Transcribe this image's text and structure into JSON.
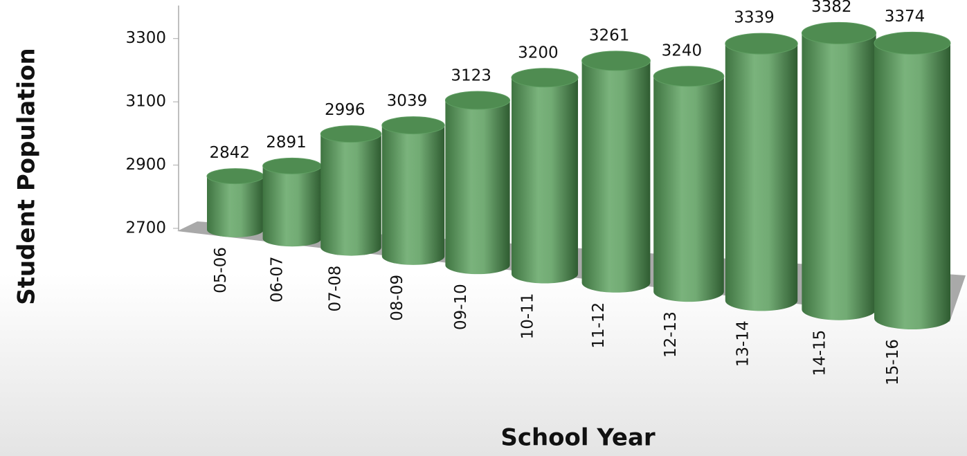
{
  "chart_data": {
    "type": "bar",
    "style": "3d-cylinder",
    "x_label": "School Year",
    "y_label": "Student Population",
    "categories": [
      "05-06",
      "06-07",
      "07-08",
      "08-09",
      "09-10",
      "10-11",
      "11-12",
      "12-13",
      "13-14",
      "14-15",
      "15-16"
    ],
    "values": [
      2842,
      2891,
      2996,
      3039,
      3123,
      3200,
      3261,
      3240,
      3339,
      3382,
      3374
    ],
    "color": "#5f9e62",
    "ylim": [
      2700,
      3400
    ],
    "yticks": [
      2700,
      2900,
      3100,
      3300
    ]
  }
}
